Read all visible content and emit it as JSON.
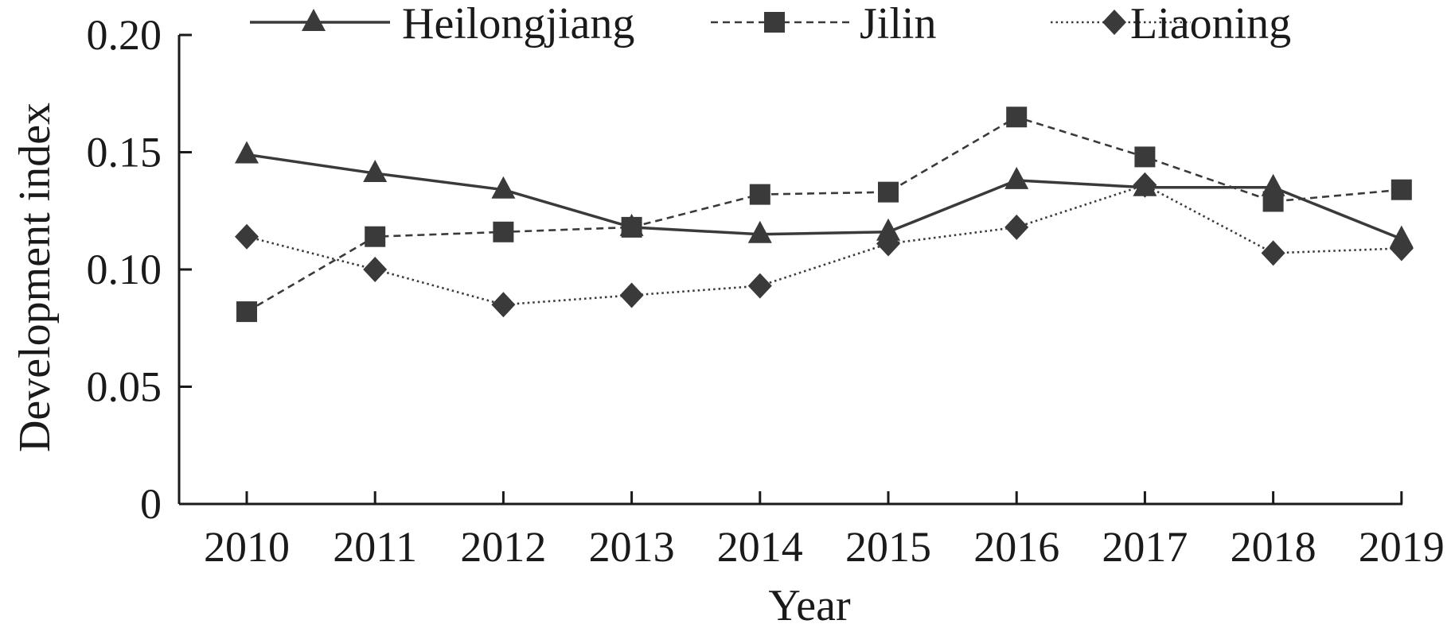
{
  "chart_data": {
    "type": "line",
    "title": "",
    "xlabel": "Year",
    "ylabel": "Development index",
    "x": [
      "2010",
      "2011",
      "2012",
      "2013",
      "2014",
      "2015",
      "2016",
      "2017",
      "2018",
      "2019"
    ],
    "ylim": [
      0,
      0.2
    ],
    "yticks": [
      "0",
      "0.05",
      "0.10",
      "0.15",
      "0.20"
    ],
    "grid": false,
    "legend_position": "top",
    "series": [
      {
        "name": "Heilongjiang",
        "marker": "triangle",
        "line_style": "solid",
        "color": "#3a3a3a",
        "values": [
          0.149,
          0.141,
          0.134,
          0.118,
          0.115,
          0.116,
          0.138,
          0.135,
          0.135,
          0.113
        ]
      },
      {
        "name": "Jilin",
        "marker": "square",
        "line_style": "dashed",
        "color": "#3a3a3a",
        "values": [
          0.082,
          0.114,
          0.116,
          0.118,
          0.132,
          0.133,
          0.165,
          0.148,
          0.129,
          0.134
        ]
      },
      {
        "name": "Liaoning",
        "marker": "diamond",
        "line_style": "dotted",
        "color": "#3a3a3a",
        "values": [
          0.114,
          0.1,
          0.085,
          0.089,
          0.093,
          0.111,
          0.118,
          0.136,
          0.107,
          0.109
        ]
      }
    ]
  }
}
